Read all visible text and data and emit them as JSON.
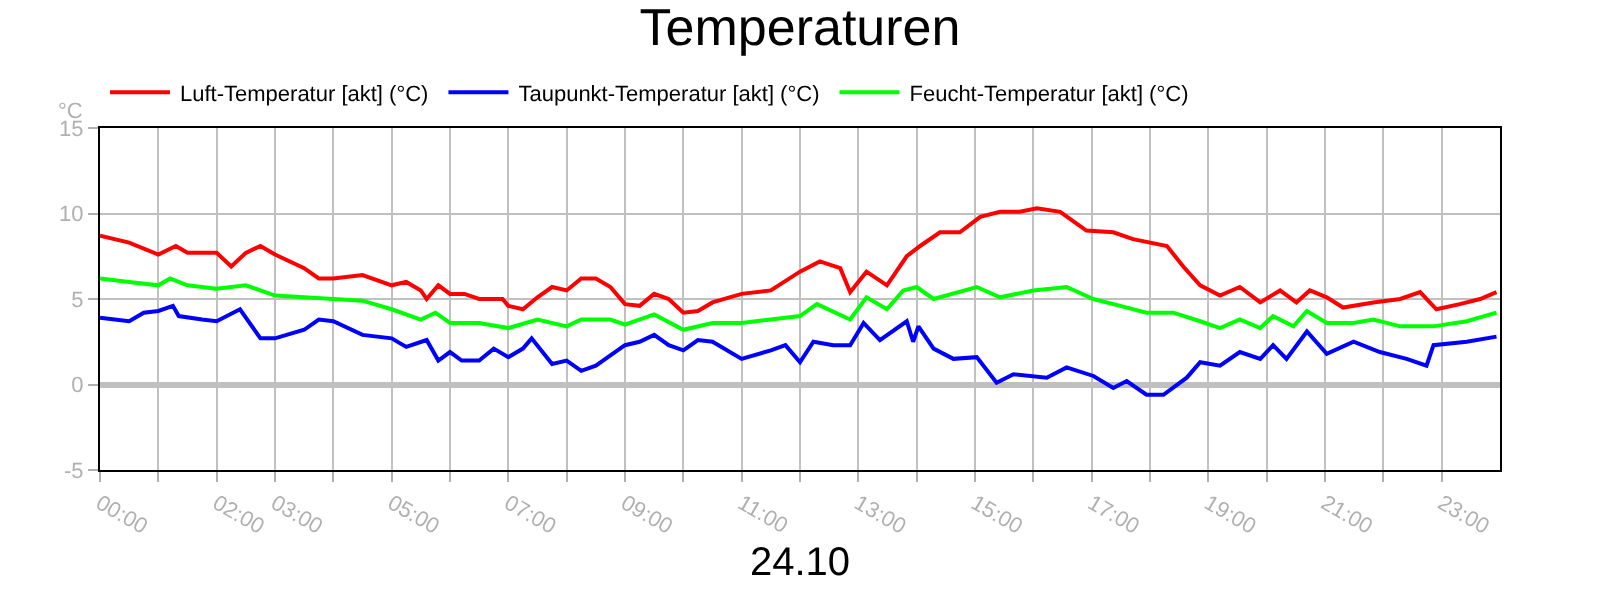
{
  "chart_data": {
    "type": "line",
    "title": "Temperaturen",
    "xlabel": "24.10",
    "ylabel": "°C",
    "xlim": [
      0,
      24
    ],
    "ylim": [
      -5,
      15
    ],
    "xticks": [
      {
        "value": 0,
        "label": "00:00"
      },
      {
        "value": 1,
        "label": null
      },
      {
        "value": 2,
        "label": "02:00"
      },
      {
        "value": 3,
        "label": "03:00"
      },
      {
        "value": 4,
        "label": null
      },
      {
        "value": 5,
        "label": "05:00"
      },
      {
        "value": 6,
        "label": null
      },
      {
        "value": 7,
        "label": "07:00"
      },
      {
        "value": 8,
        "label": null
      },
      {
        "value": 9,
        "label": "09:00"
      },
      {
        "value": 10,
        "label": null
      },
      {
        "value": 11,
        "label": "11:00"
      },
      {
        "value": 12,
        "label": null
      },
      {
        "value": 13,
        "label": "13:00"
      },
      {
        "value": 14,
        "label": null
      },
      {
        "value": 15,
        "label": "15:00"
      },
      {
        "value": 16,
        "label": null
      },
      {
        "value": 17,
        "label": "17:00"
      },
      {
        "value": 18,
        "label": null
      },
      {
        "value": 19,
        "label": "19:00"
      },
      {
        "value": 20,
        "label": null
      },
      {
        "value": 21,
        "label": "21:00"
      },
      {
        "value": 22,
        "label": null
      },
      {
        "value": 23,
        "label": "23:00"
      }
    ],
    "yticks": [
      -5,
      0,
      5,
      10,
      15
    ],
    "grid": true,
    "legend": "top left",
    "line_style": "solid",
    "marker": "none",
    "series": [
      {
        "name": "Luft-Temperatur [akt] (°C)",
        "color": "#ff0000",
        "x": [
          0,
          0.5,
          1,
          1.3,
          1.5,
          2,
          2.25,
          2.5,
          2.75,
          3,
          3.5,
          3.75,
          4,
          4.5,
          5,
          5.25,
          5.5,
          5.6,
          5.8,
          6,
          6.25,
          6.5,
          6.9,
          7,
          7.25,
          7.5,
          7.75,
          8,
          8.25,
          8.5,
          8.75,
          9,
          9.25,
          9.5,
          9.75,
          10,
          10.25,
          10.5,
          11,
          11.5,
          12,
          12.34,
          12.69,
          12.86,
          13.14,
          13.49,
          13.83,
          14.06,
          14.4,
          14.74,
          15.09,
          15.43,
          15.77,
          16.06,
          16.46,
          16.91,
          17.37,
          17.71,
          18.29,
          18.57,
          18.86,
          19.2,
          19.54,
          19.89,
          20.23,
          20.51,
          20.74,
          21.03,
          21.31,
          21.83,
          22.29,
          22.63,
          22.91,
          23.31,
          23.66,
          23.94
        ],
        "values": [
          8.7,
          8.3,
          7.6,
          8.1,
          7.7,
          7.7,
          6.9,
          7.7,
          8.1,
          7.6,
          6.8,
          6.2,
          6.2,
          6.4,
          5.8,
          6.0,
          5.5,
          5.0,
          5.8,
          5.3,
          5.3,
          5.0,
          5.0,
          4.6,
          4.4,
          5.1,
          5.7,
          5.5,
          6.2,
          6.2,
          5.7,
          4.7,
          4.6,
          5.3,
          5.0,
          4.2,
          4.3,
          4.8,
          5.3,
          5.5,
          6.6,
          7.2,
          6.8,
          5.4,
          6.6,
          5.8,
          7.5,
          8.1,
          8.9,
          8.9,
          9.8,
          10.1,
          10.1,
          10.3,
          10.1,
          9.0,
          8.9,
          8.5,
          8.1,
          6.9,
          5.8,
          5.2,
          5.7,
          4.8,
          5.5,
          4.8,
          5.5,
          5.1,
          4.5,
          4.8,
          5.0,
          5.4,
          4.4,
          4.7,
          5.0,
          5.4
        ]
      },
      {
        "name": "Taupunkt-Temperatur [akt] (°C)",
        "color": "#0000ff",
        "x": [
          0,
          0.25,
          0.5,
          0.75,
          1,
          1.25,
          1.35,
          1.75,
          2,
          2.4,
          2.75,
          3,
          3.5,
          3.75,
          4,
          4.5,
          5,
          5.25,
          5.6,
          5.8,
          6,
          6.2,
          6.5,
          6.75,
          7,
          7.25,
          7.4,
          7.75,
          8,
          8.25,
          8.5,
          8.75,
          9,
          9.25,
          9.5,
          9.75,
          10,
          10.25,
          10.5,
          11,
          11.5,
          11.75,
          12,
          12.23,
          12.57,
          12.86,
          13.09,
          13.37,
          13.83,
          13.94,
          14.03,
          14.29,
          14.63,
          15.03,
          15.37,
          15.66,
          16.23,
          16.57,
          17.03,
          17.37,
          17.6,
          17.94,
          18.23,
          18.63,
          18.86,
          19.2,
          19.54,
          19.89,
          20.11,
          20.34,
          20.69,
          21.03,
          21.49,
          21.94,
          22.4,
          22.74,
          22.86,
          23.43,
          23.94
        ],
        "values": [
          3.9,
          3.8,
          3.7,
          4.2,
          4.3,
          4.6,
          4.0,
          3.8,
          3.7,
          4.4,
          2.7,
          2.7,
          3.2,
          3.8,
          3.7,
          2.9,
          2.7,
          2.2,
          2.6,
          1.4,
          1.9,
          1.4,
          1.4,
          2.1,
          1.6,
          2.1,
          2.7,
          1.2,
          1.4,
          0.8,
          1.1,
          1.7,
          2.3,
          2.5,
          2.9,
          2.3,
          2.0,
          2.6,
          2.5,
          1.5,
          2.0,
          2.3,
          1.3,
          2.5,
          2.3,
          2.3,
          3.6,
          2.6,
          3.7,
          2.5,
          3.4,
          2.1,
          1.5,
          1.6,
          0.1,
          0.6,
          0.4,
          1.0,
          0.5,
          -0.2,
          0.2,
          -0.6,
          -0.6,
          0.4,
          1.3,
          1.1,
          1.9,
          1.5,
          2.3,
          1.5,
          3.1,
          1.8,
          2.5,
          1.9,
          1.5,
          1.1,
          2.3,
          2.5,
          2.8
        ]
      },
      {
        "name": "Feucht-Temperatur [akt] (°C)",
        "color": "#00ff00",
        "x": [
          0,
          0.5,
          1,
          1.2,
          1.5,
          2,
          2.5,
          2.75,
          3,
          4,
          4.5,
          5,
          5.5,
          5.75,
          6,
          6.5,
          7,
          7.5,
          8,
          8.25,
          8.75,
          9,
          9.5,
          10,
          10.5,
          11,
          11.5,
          12,
          12.29,
          12.86,
          13.14,
          13.49,
          13.77,
          14,
          14.29,
          15.03,
          15.43,
          16,
          16.57,
          17.03,
          17.49,
          17.94,
          18.4,
          18.86,
          19.2,
          19.54,
          19.89,
          20.11,
          20.46,
          20.69,
          21.03,
          21.49,
          21.83,
          22.29,
          22.86,
          23.43,
          23.94
        ],
        "values": [
          6.2,
          6.0,
          5.8,
          6.2,
          5.8,
          5.6,
          5.8,
          5.5,
          5.2,
          5.0,
          4.9,
          4.4,
          3.8,
          4.2,
          3.6,
          3.6,
          3.3,
          3.8,
          3.4,
          3.8,
          3.8,
          3.5,
          4.1,
          3.2,
          3.6,
          3.6,
          3.8,
          4.0,
          4.7,
          3.8,
          5.1,
          4.4,
          5.5,
          5.7,
          5.0,
          5.7,
          5.1,
          5.5,
          5.7,
          5.0,
          4.6,
          4.2,
          4.2,
          3.7,
          3.3,
          3.8,
          3.3,
          4.0,
          3.4,
          4.3,
          3.6,
          3.6,
          3.8,
          3.4,
          3.4,
          3.7,
          4.2
        ]
      }
    ]
  }
}
